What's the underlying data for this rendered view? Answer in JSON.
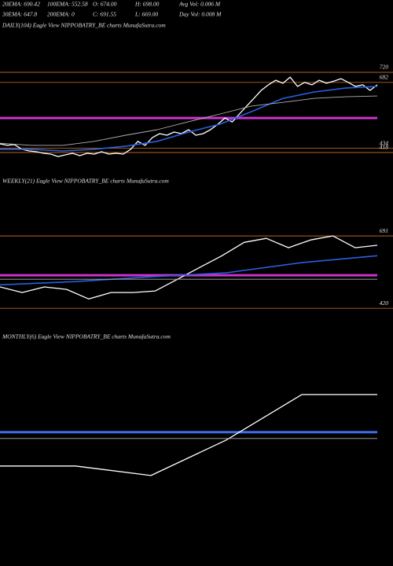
{
  "header": {
    "line1": [
      "20EMA: 690.42",
      "100EMA: 552.58",
      "O: 674.00",
      "H: 698.00",
      "Avg Vol: 0.006  M"
    ],
    "line2": [
      "30EMA: 647.8",
      "200EMA: 0",
      "C: 691.55",
      "L: 669.00",
      "Day Vol: 0.008  M"
    ]
  },
  "chart_data": [
    {
      "type": "line",
      "title": "DAILY(104) Eagle  View  NIPPOBATRY_BE charts MunafaSutra.com",
      "ylim": [
        341,
        874
      ],
      "yticks": [
        720,
        682,
        434,
        418
      ],
      "hlines": [
        {
          "value": 548,
          "color": "#cc33cc",
          "width": 3
        }
      ],
      "series": [
        {
          "color": "#ffffff",
          "width": 1.3,
          "values": [
            451,
            445,
            448,
            430,
            424,
            421,
            415,
            412,
            403,
            409,
            415,
            406,
            415,
            412,
            421,
            412,
            415,
            412,
            430,
            460,
            445,
            474,
            489,
            483,
            495,
            489,
            504,
            483,
            489,
            504,
            524,
            548,
            533,
            563,
            593,
            622,
            652,
            673,
            690,
            679,
            702,
            667,
            682,
            673,
            690,
            679,
            687,
            696,
            682,
            667,
            673,
            652,
            673
          ]
        },
        {
          "color": "#2a5fe0",
          "width": 1.6,
          "values": [
            430,
            430,
            424,
            430,
            442,
            460,
            495,
            525,
            572,
            622,
            646,
            661,
            667
          ]
        },
        {
          "color": "#b0b0b0",
          "width": 0.9,
          "values": [
            453,
            445,
            445,
            460,
            483,
            504,
            534,
            563,
            593,
            607,
            622,
            628,
            631
          ]
        }
      ]
    },
    {
      "type": "line",
      "title": "WEEKLY(21) Eagle  View  NIPPOBATRY_BE charts MunafaSutra.com",
      "ylim": [
        397,
        868
      ],
      "yticks": [
        691,
        420
      ],
      "hlines": [
        {
          "value": 544,
          "color": "#cc33cc",
          "width": 3
        }
      ],
      "series": [
        {
          "color": "#ffffff",
          "width": 1.3,
          "values": [
            500,
            479,
            500,
            491,
            455,
            479,
            479,
            485,
            529,
            573,
            617,
            667,
            682,
            647,
            676,
            691,
            647,
            656
          ]
        },
        {
          "color": "#2a5fe0",
          "width": 1.6,
          "values": [
            508,
            520,
            538,
            553,
            591,
            617
          ]
        },
        {
          "color": "#b0b0b0",
          "width": 0.9,
          "values": [
            529,
            529
          ]
        }
      ]
    },
    {
      "type": "line",
      "title": "MONTHLY(6) Eagle  View  NIPPOBATRY_BE charts MunafaSutra.com",
      "ylim": [
        170,
        880
      ],
      "hlines": [
        {
          "value": 565,
          "color": "#3a6fe8",
          "width": 3
        }
      ],
      "series": [
        {
          "color": "#ffffff",
          "width": 1.3,
          "values": [
            452,
            452,
            420,
            539,
            691,
            691
          ]
        },
        {
          "color": "#b0b0b0",
          "width": 0.9,
          "values": [
            544,
            544
          ]
        }
      ]
    }
  ]
}
